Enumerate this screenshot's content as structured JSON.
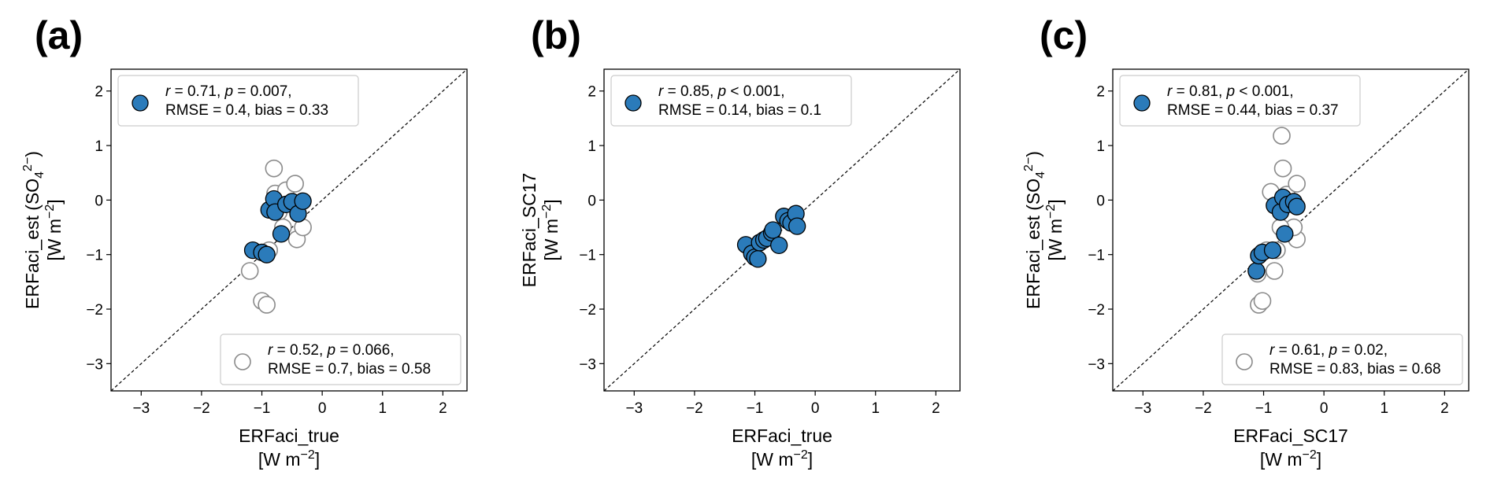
{
  "chart_data": [
    {
      "type": "scatter",
      "panel_label": "(a)",
      "xlabel": "ERFaci_true",
      "xunit_prefix": "[W m",
      "xunit_sup": "−2",
      "xunit_suffix": "]",
      "ylabel_pre": "ERFaci_est (SO",
      "ylabel_sub": "4",
      "ylabel_sup": "2−",
      "ylabel_post": ")",
      "yunit_prefix": "[W m",
      "yunit_sup": "−2",
      "yunit_suffix": "]",
      "xlim": [
        -3.5,
        2.4
      ],
      "ylim": [
        -3.5,
        2.4
      ],
      "xticks": [
        -3,
        -2,
        -1,
        0,
        1,
        2
      ],
      "yticks": [
        -3,
        -2,
        -1,
        0,
        1,
        2
      ],
      "xtick_labels": [
        "−3",
        "−2",
        "−1",
        "0",
        "1",
        "2"
      ],
      "ytick_labels": [
        "−3",
        "−2",
        "−1",
        "0",
        "1",
        "2"
      ],
      "grid": false,
      "reference_line": "1:1 dashed",
      "series": [
        {
          "marker": "filled",
          "color": "#2b7bba",
          "legend_placement": "top-left",
          "legend_line1": [
            "r",
            " = 0.71, ",
            "p",
            " = 0.007,"
          ],
          "legend_line2": "RMSE = 0.4, bias = 0.33",
          "points": [
            [
              -1.15,
              -0.92
            ],
            [
              -1.0,
              -0.96
            ],
            [
              -0.92,
              -1.0
            ],
            [
              -0.88,
              -0.18
            ],
            [
              -0.8,
              0.02
            ],
            [
              -0.78,
              -0.22
            ],
            [
              -0.68,
              -0.62
            ],
            [
              -0.6,
              -0.08
            ],
            [
              -0.5,
              -0.03
            ],
            [
              -0.4,
              -0.25
            ],
            [
              -0.32,
              -0.02
            ]
          ]
        },
        {
          "marker": "open",
          "color": "#ffffff",
          "legend_placement": "bottom-right",
          "legend_line1": [
            "r",
            " = 0.52, ",
            "p",
            " = 0.066,"
          ],
          "legend_line2": "RMSE = 0.7, bias = 0.58",
          "points": [
            [
              -1.2,
              -1.3
            ],
            [
              -1.0,
              -1.85
            ],
            [
              -0.92,
              -1.92
            ],
            [
              -0.88,
              -0.92
            ],
            [
              -0.8,
              0.58
            ],
            [
              -0.78,
              0.12
            ],
            [
              -0.72,
              -0.22
            ],
            [
              -0.6,
              0.18
            ],
            [
              -0.45,
              0.3
            ],
            [
              -0.42,
              -0.72
            ],
            [
              -0.32,
              -0.5
            ],
            [
              -0.65,
              -0.5
            ]
          ]
        }
      ]
    },
    {
      "type": "scatter",
      "panel_label": "(b)",
      "xlabel": "ERFaci_true",
      "xunit_prefix": "[W m",
      "xunit_sup": "−2",
      "xunit_suffix": "]",
      "ylabel_pre": "ERFaci_SC17",
      "ylabel_sub": "",
      "ylabel_sup": "",
      "ylabel_post": "",
      "yunit_prefix": "[W m",
      "yunit_sup": "−2",
      "yunit_suffix": "]",
      "xlim": [
        -3.5,
        2.4
      ],
      "ylim": [
        -3.5,
        2.4
      ],
      "xticks": [
        -3,
        -2,
        -1,
        0,
        1,
        2
      ],
      "yticks": [
        -3,
        -2,
        -1,
        0,
        1,
        2
      ],
      "xtick_labels": [
        "−3",
        "−2",
        "−1",
        "0",
        "1",
        "2"
      ],
      "ytick_labels": [
        "−3",
        "−2",
        "−1",
        "0",
        "1",
        "2"
      ],
      "grid": false,
      "reference_line": "1:1 dashed",
      "series": [
        {
          "marker": "filled",
          "color": "#2b7bba",
          "legend_placement": "top-left",
          "legend_line1": [
            "r",
            " = 0.85, ",
            "p",
            " < 0.001,"
          ],
          "legend_line2": "RMSE = 0.14, bias = 0.1",
          "points": [
            [
              -1.15,
              -0.82
            ],
            [
              -1.05,
              -0.98
            ],
            [
              -1.0,
              -1.05
            ],
            [
              -0.95,
              -1.08
            ],
            [
              -0.92,
              -0.78
            ],
            [
              -0.85,
              -0.73
            ],
            [
              -0.8,
              -0.7
            ],
            [
              -0.72,
              -0.6
            ],
            [
              -0.7,
              -0.55
            ],
            [
              -0.6,
              -0.83
            ],
            [
              -0.52,
              -0.3
            ],
            [
              -0.45,
              -0.38
            ],
            [
              -0.4,
              -0.42
            ],
            [
              -0.32,
              -0.25
            ],
            [
              -0.3,
              -0.48
            ]
          ]
        }
      ]
    },
    {
      "type": "scatter",
      "panel_label": "(c)",
      "xlabel": "ERFaci_SC17",
      "xunit_prefix": "[W m",
      "xunit_sup": "−2",
      "xunit_suffix": "]",
      "ylabel_pre": "ERFaci_est (SO",
      "ylabel_sub": "4",
      "ylabel_sup": "2−",
      "ylabel_post": ")",
      "yunit_prefix": "[W m",
      "yunit_sup": "−2",
      "yunit_suffix": "]",
      "xlim": [
        -3.5,
        2.4
      ],
      "ylim": [
        -3.5,
        2.4
      ],
      "xticks": [
        -3,
        -2,
        -1,
        0,
        1,
        2
      ],
      "yticks": [
        -3,
        -2,
        -1,
        0,
        1,
        2
      ],
      "xtick_labels": [
        "−3",
        "−2",
        "−1",
        "0",
        "1",
        "2"
      ],
      "ytick_labels": [
        "−3",
        "−2",
        "−1",
        "0",
        "1",
        "2"
      ],
      "grid": false,
      "reference_line": "1:1 dashed",
      "series": [
        {
          "marker": "filled",
          "color": "#2b7bba",
          "legend_placement": "top-left",
          "legend_line1": [
            "r",
            " = 0.81, ",
            "p",
            " < 0.001,"
          ],
          "legend_line2": "RMSE = 0.44, bias = 0.37",
          "points": [
            [
              -1.12,
              -1.3
            ],
            [
              -1.08,
              -1.02
            ],
            [
              -1.02,
              -0.96
            ],
            [
              -0.85,
              -0.92
            ],
            [
              -0.82,
              -0.1
            ],
            [
              -0.72,
              -0.22
            ],
            [
              -0.68,
              0.05
            ],
            [
              -0.65,
              -0.62
            ],
            [
              -0.6,
              -0.08
            ],
            [
              -0.5,
              -0.03
            ],
            [
              -0.45,
              -0.12
            ]
          ]
        },
        {
          "marker": "open",
          "color": "#ffffff",
          "legend_placement": "bottom-right",
          "legend_line1": [
            "r",
            " = 0.61, ",
            "p",
            " = 0.02,"
          ],
          "legend_line2": "RMSE = 0.83, bias = 0.68",
          "points": [
            [
              -1.1,
              -1.35
            ],
            [
              -1.08,
              -1.92
            ],
            [
              -1.02,
              -1.85
            ],
            [
              -0.95,
              -0.92
            ],
            [
              -0.88,
              0.15
            ],
            [
              -0.82,
              -1.3
            ],
            [
              -0.78,
              -0.92
            ],
            [
              -0.7,
              1.18
            ],
            [
              -0.68,
              0.58
            ],
            [
              -0.62,
              0.1
            ],
            [
              -0.45,
              0.3
            ],
            [
              -0.45,
              -0.72
            ],
            [
              -0.5,
              -0.5
            ],
            [
              -0.72,
              -0.5
            ]
          ]
        }
      ]
    }
  ]
}
